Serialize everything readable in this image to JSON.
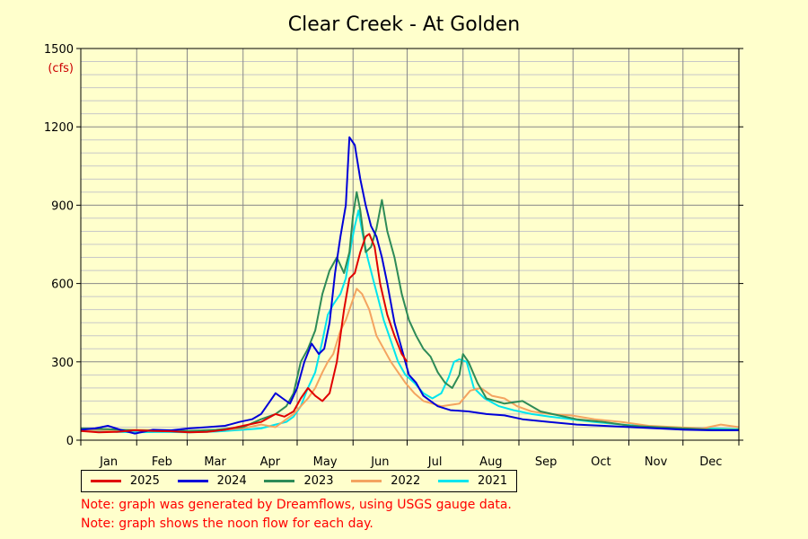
{
  "colors": {
    "background": "#ffffcc",
    "grid": "#888888",
    "minor_grid": "#c8c8c8",
    "unit_label": "#cc0000",
    "notes": "#ff0000"
  },
  "notes": [
    "Note: graph was generated by Dreamflows, using USGS gauge data.",
    "Note: graph shows the noon flow for each day."
  ],
  "chart_data": {
    "type": "line",
    "title": "Clear Creek - At Golden",
    "ylabel": "(cfs)",
    "ylim": [
      0,
      1500
    ],
    "yticks": [
      0,
      300,
      600,
      900,
      1200,
      1500
    ],
    "xlim": [
      0,
      365
    ],
    "months": [
      "Jan",
      "Feb",
      "Mar",
      "Apr",
      "May",
      "Jun",
      "Jul",
      "Aug",
      "Sep",
      "Oct",
      "Nov",
      "Dec"
    ],
    "month_starts": [
      0,
      31,
      59,
      90,
      120,
      151,
      181,
      212,
      243,
      273,
      304,
      334,
      365
    ],
    "grid": true,
    "legend_position": "bottom",
    "series": [
      {
        "name": "2025",
        "color": "#e00000",
        "points": [
          [
            0,
            35
          ],
          [
            10,
            30
          ],
          [
            20,
            32
          ],
          [
            30,
            38
          ],
          [
            40,
            35
          ],
          [
            50,
            34
          ],
          [
            60,
            30
          ],
          [
            70,
            32
          ],
          [
            80,
            40
          ],
          [
            90,
            55
          ],
          [
            100,
            70
          ],
          [
            108,
            100
          ],
          [
            113,
            90
          ],
          [
            118,
            110
          ],
          [
            122,
            160
          ],
          [
            126,
            200
          ],
          [
            130,
            170
          ],
          [
            134,
            150
          ],
          [
            138,
            180
          ],
          [
            142,
            300
          ],
          [
            146,
            500
          ],
          [
            149,
            620
          ],
          [
            152,
            640
          ],
          [
            155,
            720
          ],
          [
            158,
            780
          ],
          [
            160,
            790
          ],
          [
            163,
            740
          ],
          [
            166,
            600
          ],
          [
            170,
            480
          ],
          [
            174,
            400
          ],
          [
            178,
            330
          ],
          [
            181,
            300
          ]
        ]
      },
      {
        "name": "2024",
        "color": "#0000d8",
        "points": [
          [
            0,
            40
          ],
          [
            8,
            45
          ],
          [
            15,
            55
          ],
          [
            22,
            40
          ],
          [
            30,
            25
          ],
          [
            40,
            40
          ],
          [
            50,
            38
          ],
          [
            60,
            45
          ],
          [
            70,
            50
          ],
          [
            80,
            55
          ],
          [
            88,
            70
          ],
          [
            95,
            80
          ],
          [
            100,
            100
          ],
          [
            105,
            150
          ],
          [
            108,
            180
          ],
          [
            112,
            160
          ],
          [
            116,
            140
          ],
          [
            120,
            200
          ],
          [
            124,
            300
          ],
          [
            128,
            370
          ],
          [
            132,
            330
          ],
          [
            135,
            350
          ],
          [
            138,
            450
          ],
          [
            141,
            640
          ],
          [
            144,
            780
          ],
          [
            147,
            900
          ],
          [
            149,
            1160
          ],
          [
            152,
            1130
          ],
          [
            155,
            1000
          ],
          [
            158,
            900
          ],
          [
            161,
            820
          ],
          [
            164,
            780
          ],
          [
            167,
            700
          ],
          [
            170,
            600
          ],
          [
            174,
            450
          ],
          [
            178,
            350
          ],
          [
            182,
            250
          ],
          [
            186,
            220
          ],
          [
            190,
            170
          ],
          [
            194,
            150
          ],
          [
            198,
            130
          ],
          [
            205,
            115
          ],
          [
            215,
            110
          ],
          [
            225,
            100
          ],
          [
            235,
            95
          ],
          [
            245,
            80
          ],
          [
            260,
            70
          ],
          [
            275,
            60
          ],
          [
            290,
            55
          ],
          [
            305,
            50
          ],
          [
            320,
            45
          ],
          [
            335,
            40
          ],
          [
            350,
            38
          ],
          [
            365,
            38
          ]
        ]
      },
      {
        "name": "2023",
        "color": "#2e8b57",
        "points": [
          [
            0,
            45
          ],
          [
            15,
            42
          ],
          [
            30,
            38
          ],
          [
            45,
            36
          ],
          [
            60,
            35
          ],
          [
            75,
            40
          ],
          [
            90,
            50
          ],
          [
            100,
            80
          ],
          [
            108,
            100
          ],
          [
            114,
            130
          ],
          [
            118,
            180
          ],
          [
            122,
            300
          ],
          [
            126,
            350
          ],
          [
            130,
            420
          ],
          [
            134,
            560
          ],
          [
            138,
            650
          ],
          [
            142,
            700
          ],
          [
            146,
            640
          ],
          [
            149,
            720
          ],
          [
            151,
            860
          ],
          [
            153,
            950
          ],
          [
            155,
            880
          ],
          [
            158,
            720
          ],
          [
            161,
            740
          ],
          [
            164,
            810
          ],
          [
            167,
            920
          ],
          [
            170,
            800
          ],
          [
            174,
            700
          ],
          [
            178,
            560
          ],
          [
            182,
            460
          ],
          [
            186,
            400
          ],
          [
            190,
            350
          ],
          [
            194,
            320
          ],
          [
            198,
            260
          ],
          [
            202,
            220
          ],
          [
            206,
            200
          ],
          [
            210,
            250
          ],
          [
            212,
            330
          ],
          [
            215,
            300
          ],
          [
            220,
            220
          ],
          [
            225,
            160
          ],
          [
            235,
            140
          ],
          [
            245,
            150
          ],
          [
            255,
            110
          ],
          [
            265,
            95
          ],
          [
            275,
            80
          ],
          [
            290,
            70
          ],
          [
            305,
            55
          ],
          [
            320,
            50
          ],
          [
            335,
            45
          ],
          [
            350,
            40
          ],
          [
            365,
            40
          ]
        ]
      },
      {
        "name": "2022",
        "color": "#f4a460",
        "points": [
          [
            0,
            40
          ],
          [
            15,
            38
          ],
          [
            30,
            40
          ],
          [
            45,
            38
          ],
          [
            60,
            35
          ],
          [
            75,
            38
          ],
          [
            90,
            45
          ],
          [
            100,
            60
          ],
          [
            108,
            50
          ],
          [
            114,
            80
          ],
          [
            118,
            100
          ],
          [
            122,
            130
          ],
          [
            126,
            160
          ],
          [
            130,
            200
          ],
          [
            134,
            260
          ],
          [
            137,
            300
          ],
          [
            140,
            330
          ],
          [
            144,
            420
          ],
          [
            147,
            460
          ],
          [
            150,
            520
          ],
          [
            153,
            580
          ],
          [
            156,
            560
          ],
          [
            160,
            500
          ],
          [
            164,
            400
          ],
          [
            168,
            350
          ],
          [
            172,
            300
          ],
          [
            176,
            260
          ],
          [
            180,
            220
          ],
          [
            185,
            180
          ],
          [
            190,
            150
          ],
          [
            195,
            140
          ],
          [
            200,
            130
          ],
          [
            210,
            140
          ],
          [
            216,
            190
          ],
          [
            222,
            200
          ],
          [
            228,
            170
          ],
          [
            235,
            160
          ],
          [
            242,
            130
          ],
          [
            250,
            110
          ],
          [
            260,
            100
          ],
          [
            272,
            95
          ],
          [
            285,
            80
          ],
          [
            300,
            70
          ],
          [
            315,
            55
          ],
          [
            330,
            50
          ],
          [
            345,
            45
          ],
          [
            355,
            60
          ],
          [
            365,
            50
          ]
        ]
      },
      {
        "name": "2021",
        "color": "#00e5ee",
        "points": [
          [
            0,
            35
          ],
          [
            15,
            33
          ],
          [
            30,
            30
          ],
          [
            45,
            32
          ],
          [
            60,
            30
          ],
          [
            75,
            33
          ],
          [
            90,
            40
          ],
          [
            100,
            45
          ],
          [
            108,
            60
          ],
          [
            114,
            70
          ],
          [
            118,
            90
          ],
          [
            122,
            130
          ],
          [
            126,
            200
          ],
          [
            130,
            260
          ],
          [
            134,
            380
          ],
          [
            137,
            480
          ],
          [
            140,
            520
          ],
          [
            144,
            560
          ],
          [
            147,
            620
          ],
          [
            150,
            750
          ],
          [
            152,
            820
          ],
          [
            154,
            880
          ],
          [
            156,
            800
          ],
          [
            159,
            700
          ],
          [
            162,
            620
          ],
          [
            165,
            540
          ],
          [
            168,
            460
          ],
          [
            172,
            380
          ],
          [
            176,
            300
          ],
          [
            180,
            250
          ],
          [
            185,
            220
          ],
          [
            190,
            180
          ],
          [
            195,
            160
          ],
          [
            200,
            180
          ],
          [
            204,
            240
          ],
          [
            207,
            300
          ],
          [
            210,
            310
          ],
          [
            214,
            300
          ],
          [
            218,
            200
          ],
          [
            224,
            160
          ],
          [
            232,
            130
          ],
          [
            240,
            115
          ],
          [
            250,
            100
          ],
          [
            260,
            90
          ],
          [
            272,
            80
          ],
          [
            285,
            70
          ],
          [
            300,
            60
          ],
          [
            315,
            52
          ],
          [
            330,
            48
          ],
          [
            345,
            45
          ],
          [
            365,
            42
          ]
        ]
      }
    ]
  }
}
